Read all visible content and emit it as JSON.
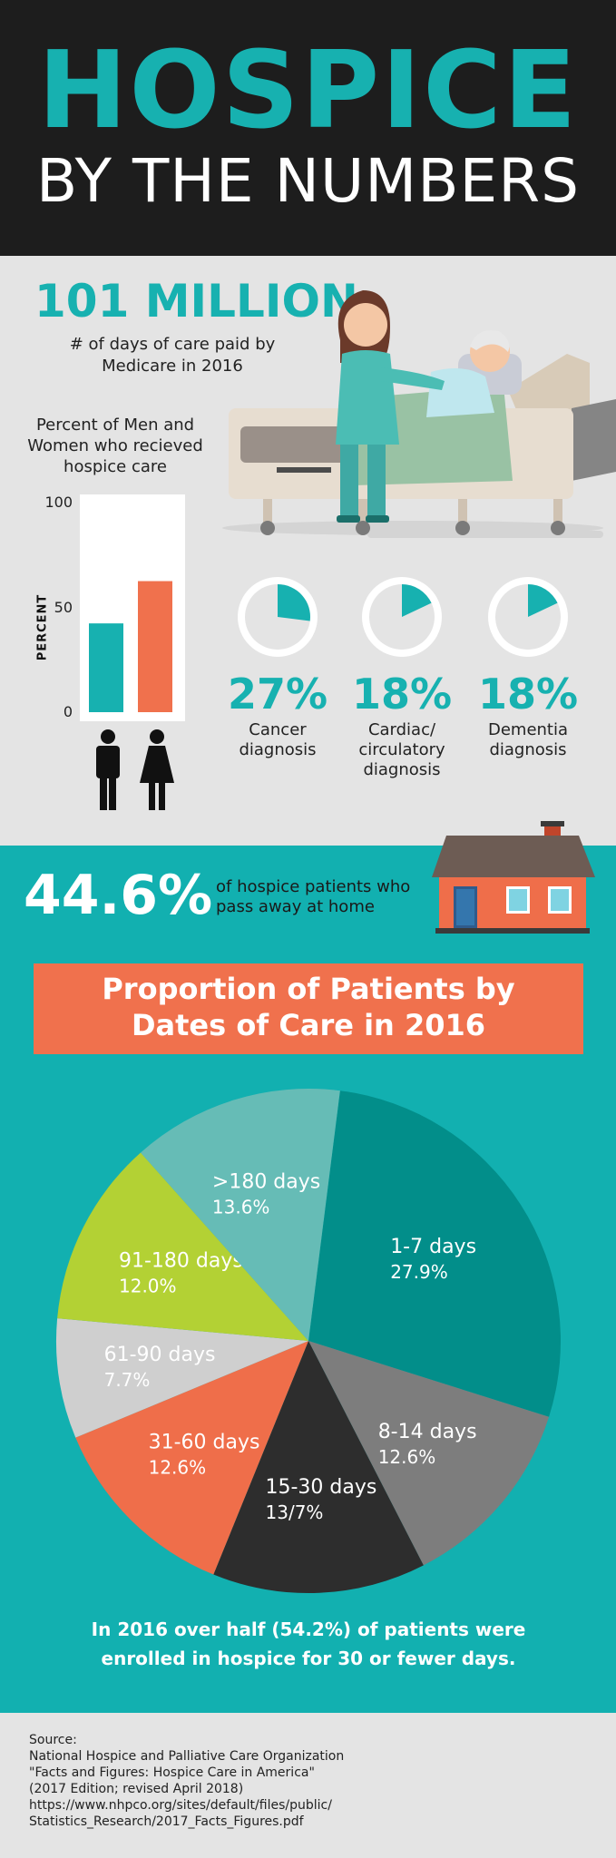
{
  "header": {
    "title": "HOSPICE",
    "subtitle": "BY THE NUMBERS"
  },
  "medicare": {
    "value": "101 MILLION",
    "caption_line1": "# of days of care paid by",
    "caption_line2": "Medicare in 2016"
  },
  "gender_chart": {
    "title_line1": "Percent of Men and",
    "title_line2": "Women who recieved",
    "title_line3": "hospice care",
    "ylabel": "PERCENT",
    "ticks": [
      "100",
      "50",
      "0"
    ],
    "ylim": [
      0,
      100
    ]
  },
  "diagnoses": [
    {
      "pct": "27%",
      "label1": "Cancer",
      "label2": "diagnosis",
      "label3": ""
    },
    {
      "pct": "18%",
      "label1": "Cardiac/",
      "label2": "circulatory",
      "label3": "diagnosis"
    },
    {
      "pct": "18%",
      "label1": "Dementia",
      "label2": "diagnosis",
      "label3": ""
    }
  ],
  "home": {
    "value": "44.6%",
    "caption_line1": "of hospice patients who",
    "caption_line2": "pass away at home"
  },
  "proportion": {
    "title_line1": "Proportion of Patients by",
    "title_line2": "Dates of Care in 2016"
  },
  "summary": {
    "line1": "In 2016 over half (54.2%) of patients were",
    "line2": "enrolled in hospice for 30 or fewer days."
  },
  "source": {
    "lines": [
      "Source:",
      "National Hospice and Palliative Care Organization",
      "\"Facts and Figures: Hospice Care in America\"",
      "(2017 Edition; revised April 2018)",
      "https://www.nhpco.org/sites/default/files/public/",
      "Statistics_Research/2017_Facts_Figures.pdf"
    ]
  },
  "colors": {
    "teal": "#12b0b0",
    "orange": "#f0714d",
    "dark": "#1d1d1d"
  },
  "chart_data": [
    {
      "type": "bar",
      "categories": [
        "Men",
        "Women"
      ],
      "values": [
        42,
        62
      ],
      "ylabel": "PERCENT",
      "ylim": [
        0,
        100
      ],
      "colors": [
        "#17b1b0",
        "#f0714d"
      ]
    },
    {
      "type": "pie",
      "slices": [
        {
          "name": "1-7 days",
          "label": "27.9%",
          "value": 27.9,
          "color": "#028e8a"
        },
        {
          "name": "8-14 days",
          "label": "12.6%",
          "value": 12.6,
          "color": "#7d7d7d"
        },
        {
          "name": "15-30 days",
          "label": "13/7%",
          "value": 13.7,
          "color": "#2d2d2d"
        },
        {
          "name": "31-60 days",
          "label": "12.6%",
          "value": 12.6,
          "color": "#ef6e4a"
        },
        {
          "name": "61-90 days",
          "label": "7.7%",
          "value": 7.7,
          "color": "#cfcfcf"
        },
        {
          "name": "91-180 days",
          "label": "12.0%",
          "value": 12.0,
          "color": "#b3d134"
        },
        {
          "name": ">180 days",
          "label": "13.6%",
          "value": 13.6,
          "color": "#66bcb6"
        }
      ]
    }
  ]
}
